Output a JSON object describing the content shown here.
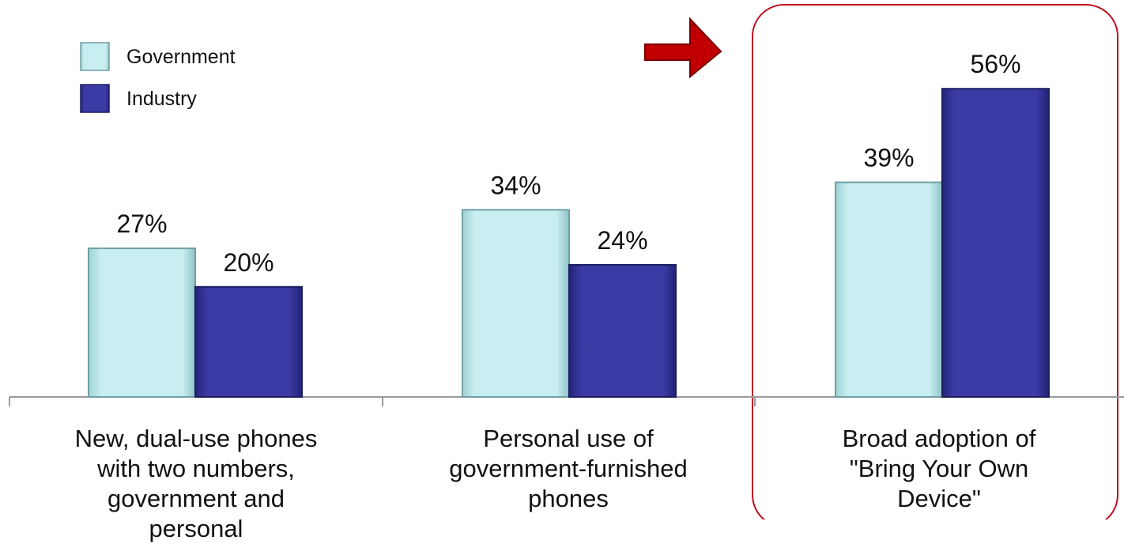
{
  "chart_data": {
    "type": "bar",
    "categories": [
      "New, dual-use phones with two numbers, government and personal",
      "Personal use of government-furnished phones",
      "Broad adoption of \"Bring Your Own Device\""
    ],
    "series": [
      {
        "name": "Government",
        "values": [
          27,
          34,
          39
        ],
        "labels": [
          "27%",
          "34%",
          "39%"
        ],
        "color": "#c6ecef"
      },
      {
        "name": "Industry",
        "values": [
          20,
          24,
          56
        ],
        "labels": [
          "20%",
          "24%",
          "56%"
        ],
        "color": "#3b3aa3"
      }
    ],
    "ylim": [
      0,
      70
    ],
    "grid": false,
    "legend_placement": "top-left",
    "highlight": {
      "category_index": 2,
      "color": "#c01020"
    },
    "arrow_color": "#c00000"
  }
}
